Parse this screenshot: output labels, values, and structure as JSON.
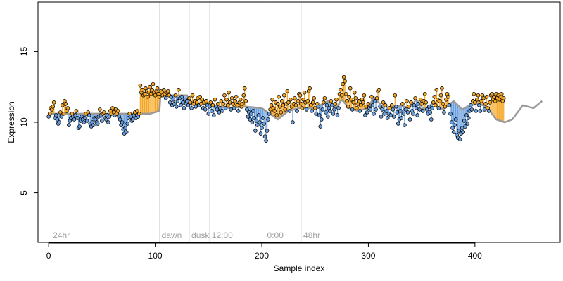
{
  "chart_data": {
    "type": "scatter",
    "title": "",
    "xlabel": "Sample index",
    "ylabel": "Expression",
    "xlim": [
      -10,
      480
    ],
    "ylim": [
      1.5,
      18.5
    ],
    "x_ticks": [
      0,
      100,
      200,
      300,
      400
    ],
    "y_ticks": [
      5,
      10,
      15
    ],
    "grid": false,
    "legend": "none",
    "colors": {
      "points_fill": "#cccccc",
      "points_stroke": "#000000",
      "above_segment": "#f5a623",
      "below_segment": "#6a9fe0",
      "trend_line": "#9a9a9a",
      "annotation_line": "#dddddd",
      "annotation_text": "#a0a0a0"
    },
    "annotations": [
      {
        "label": "24hr",
        "x": 2,
        "line": false
      },
      {
        "label": "dawn",
        "x": 104,
        "line": true
      },
      {
        "label": "dusk",
        "x": 132,
        "line": true
      },
      {
        "label": "12:00",
        "x": 151,
        "line": true
      },
      {
        "label": "0:00",
        "x": 203,
        "line": true
      },
      {
        "label": "48hr",
        "x": 237,
        "line": true
      }
    ],
    "trend": [
      [
        0,
        10.6
      ],
      [
        95,
        10.6
      ],
      [
        104,
        10.8
      ],
      [
        105,
        11.9
      ],
      [
        130,
        11.9
      ],
      [
        133,
        11.3
      ],
      [
        150,
        11.3
      ],
      [
        152,
        11.2
      ],
      [
        170,
        11.0
      ],
      [
        185,
        11.1
      ],
      [
        200,
        11.0
      ],
      [
        215,
        10.2
      ],
      [
        225,
        10.8
      ],
      [
        235,
        11.0
      ],
      [
        250,
        11.0
      ],
      [
        262,
        11.5
      ],
      [
        270,
        11.0
      ],
      [
        275,
        11.6
      ],
      [
        282,
        11.0
      ],
      [
        290,
        10.8
      ],
      [
        300,
        11.0
      ],
      [
        305,
        11.8
      ],
      [
        312,
        11.2
      ],
      [
        320,
        11.0
      ],
      [
        330,
        11.2
      ],
      [
        338,
        11.0
      ],
      [
        345,
        11.6
      ],
      [
        352,
        10.9
      ],
      [
        360,
        11.3
      ],
      [
        370,
        10.9
      ],
      [
        380,
        11.5
      ],
      [
        388,
        10.9
      ],
      [
        395,
        11.2
      ],
      [
        405,
        11.3
      ],
      [
        412,
        11.0
      ],
      [
        420,
        10.2
      ],
      [
        428,
        10.0
      ],
      [
        435,
        10.2
      ],
      [
        445,
        11.2
      ],
      [
        455,
        11.0
      ],
      [
        463,
        11.5
      ]
    ],
    "y": [
      10.4,
      10.6,
      11.0,
      10.9,
      11.1,
      11.4,
      10.3,
      10.5,
      10.2,
      9.9,
      10.0,
      10.7,
      10.4,
      11.2,
      10.6,
      11.5,
      11.3,
      10.8,
      11.0,
      9.8,
      10.1,
      10.3,
      10.6,
      10.4,
      10.2,
      10.5,
      10.8,
      10.3,
      9.6,
      9.7,
      10.1,
      10.4,
      10.2,
      10.0,
      10.3,
      10.6,
      10.1,
      10.7,
      10.5,
      9.9,
      9.7,
      10.0,
      9.8,
      10.3,
      10.2,
      10.0,
      9.9,
      10.4,
      10.9,
      10.5,
      10.1,
      10.6,
      10.7,
      10.3,
      10.2,
      10.5,
      10.0,
      10.4,
      10.8,
      10.6,
      11.0,
      10.7,
      10.5,
      10.9,
      10.6,
      10.8,
      10.4,
      10.2,
      9.8,
      10.0,
      9.5,
      9.2,
      9.6,
      9.3,
      9.9,
      10.3,
      10.6,
      10.4,
      10.1,
      10.2,
      10.5,
      10.7,
      10.3,
      10.8,
      10.4,
      10.6,
      12.6,
      12.1,
      12.3,
      11.9,
      12.0,
      12.4,
      12.2,
      11.8,
      12.1,
      12.5,
      12.0,
      12.3,
      12.7,
      12.1,
      11.9,
      12.2,
      12.4,
      12.0,
      11.8,
      12.2,
      12.1,
      11.9,
      12.3,
      12.0,
      11.7,
      12.1,
      12.2,
      11.9,
      11.4,
      11.8,
      11.2,
      11.6,
      11.3,
      11.9,
      11.1,
      11.5,
      12.3,
      11.7,
      11.2,
      11.8,
      11.4,
      11.0,
      11.6,
      11.3,
      11.5,
      11.2,
      11.7,
      11.4,
      11.0,
      11.9,
      11.3,
      11.5,
      11.1,
      11.4,
      11.7,
      11.2,
      11.8,
      11.3,
      11.6,
      11.0,
      11.4,
      10.9,
      11.5,
      11.2,
      10.6,
      11.1,
      11.4,
      10.8,
      11.2,
      10.5,
      11.6,
      11.1,
      10.9,
      11.3,
      10.7,
      11.0,
      11.5,
      10.8,
      11.3,
      11.9,
      11.0,
      11.6,
      11.2,
      12.1,
      11.4,
      10.9,
      11.7,
      11.3,
      11.0,
      11.5,
      11.8,
      11.2,
      10.8,
      11.4,
      11.6,
      11.1,
      11.3,
      11.9,
      12.4,
      11.5,
      10.9,
      10.4,
      10.7,
      10.2,
      10.6,
      10.0,
      10.8,
      10.3,
      9.4,
      10.1,
      9.8,
      10.5,
      10.0,
      9.2,
      9.6,
      10.3,
      9.9,
      9.0,
      8.7,
      9.4,
      10.2,
      10.6,
      10.9,
      11.2,
      11.6,
      11.0,
      10.8,
      11.4,
      10.5,
      11.3,
      11.8,
      11.1,
      10.7,
      11.5,
      11.2,
      11.9,
      10.9,
      11.3,
      12.2,
      11.4,
      10.8,
      11.6,
      11.1,
      10.0,
      11.3,
      11.7,
      11.2,
      10.8,
      11.5,
      12.0,
      11.9,
      11.3,
      11.0,
      11.6,
      12.1,
      11.4,
      10.9,
      11.5,
      12.2,
      12.4,
      11.2,
      10.8,
      11.4,
      11.7,
      11.0,
      10.6,
      11.3,
      11.1,
      10.5,
      9.7,
      10.2,
      10.9,
      11.4,
      11.7,
      10.7,
      11.2,
      10.4,
      11.0,
      10.8,
      11.5,
      11.2,
      10.6,
      10.9,
      11.3,
      11.6,
      10.5,
      11.0,
      12.0,
      12.3,
      11.9,
      12.7,
      13.2,
      12.9,
      12.0,
      11.5,
      11.1,
      11.8,
      12.4,
      11.6,
      10.9,
      11.4,
      12.1,
      11.7,
      11.0,
      11.3,
      11.5,
      10.8,
      11.2,
      11.6,
      11.4,
      11.9,
      10.5,
      11.1,
      10.7,
      11.3,
      11.0,
      10.9,
      11.8,
      11.2,
      10.6,
      11.5,
      10.9,
      11.7,
      12.2,
      12.3,
      11.1,
      10.4,
      10.9,
      11.4,
      10.6,
      11.2,
      10.8,
      10.3,
      10.6,
      11.0,
      10.5,
      11.2,
      10.9,
      10.4,
      11.9,
      11.1,
      10.7,
      9.9,
      10.2,
      10.8,
      10.3,
      11.3,
      10.6,
      9.8,
      10.9,
      11.5,
      10.7,
      11.1,
      10.2,
      11.4,
      10.8,
      10.6,
      11.2,
      11.7,
      11.0,
      10.5,
      11.3,
      10.9,
      11.6,
      11.3,
      10.8,
      11.5,
      12.0,
      11.4,
      10.9,
      10.6,
      11.1,
      10.7,
      10.2,
      11.0,
      11.4,
      11.8,
      11.2,
      12.3,
      11.6,
      11.0,
      11.5,
      11.9,
      12.4,
      11.3,
      10.7,
      11.1,
      11.6,
      12.0,
      11.8,
      11.2,
      10.6,
      10.0,
      9.6,
      9.3,
      9.8,
      10.2,
      9.1,
      8.9,
      9.4,
      8.8,
      9.2,
      9.6,
      9.3,
      10.1,
      9.7,
      10.5,
      9.9,
      10.3,
      10.8,
      11.2,
      10.9,
      11.5,
      12.0,
      11.4,
      10.8,
      11.6,
      11.9,
      11.2,
      10.8,
      11.5,
      11.9,
      11.7,
      10.9,
      11.3,
      11.8,
      11.0,
      10.8,
      11.4,
      11.9,
      12.0,
      11.6,
      11.8,
      11.5,
      12.0,
      11.7,
      11.9,
      11.6,
      11.8,
      12.0,
      11.5,
      11.7
    ]
  }
}
